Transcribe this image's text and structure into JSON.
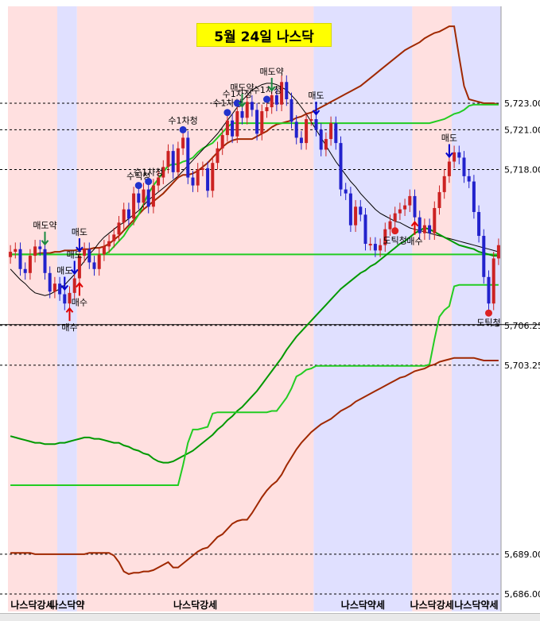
{
  "chart_data": {
    "type": "line",
    "title": "5월 24일 나스닥",
    "xlabel": "",
    "ylabel": "",
    "y_ticks": [
      5723.0,
      5721.0,
      5718.0,
      5706.25,
      5703.25,
      5689.0,
      5686.0
    ],
    "y_tick_labels": [
      "5,723.00",
      "5,721.00",
      "5,718.00",
      "5,706.25",
      "5,703.25",
      "5,689.00",
      "5,686.00"
    ],
    "ylim": [
      5685.0,
      5729.0
    ],
    "num_bars": 100,
    "candles": {
      "close": [
        5711.8,
        5712.0,
        5710.5,
        5710.2,
        5711.5,
        5712.2,
        5712.0,
        5710.2,
        5708.8,
        5709.4,
        5708.6,
        5707.9,
        5708.7,
        5709.8,
        5711.5,
        5712.0,
        5711.0,
        5710.5,
        5711.6,
        5712.2,
        5712.6,
        5713.1,
        5714.0,
        5715.0,
        5714.3,
        5716.2,
        5715.5,
        5716.5,
        5715.2,
        5716.8,
        5717.4,
        5718.2,
        5719.4,
        5717.8,
        5719.6,
        5720.4,
        5717.4,
        5716.8,
        5718.0,
        5718.1,
        5716.4,
        5718.5,
        5719.6,
        5720.6,
        5721.7,
        5720.5,
        5722.4,
        5721.9,
        5723.1,
        5722.5,
        5720.7,
        5722.4,
        5722.7,
        5723.6,
        5722.9,
        5724.6,
        5723.3,
        5721.6,
        5720.4,
        5720.0,
        5721.8,
        5721.8,
        5721.0,
        5719.5,
        5720.3,
        5721.5,
        5720.0,
        5716.5,
        5716.2,
        5713.8,
        5715.2,
        5714.6,
        5712.4,
        5712.4,
        5711.9,
        5712.3,
        5713.5,
        5714.1,
        5714.7,
        5715.0,
        5715.3,
        5716.0,
        5714.4,
        5713.2,
        5713.8,
        5713.2,
        5715.1,
        5716.3,
        5717.5,
        5718.6,
        5719.3,
        5718.9,
        5717.5,
        5717.1,
        5714.8,
        5713.0,
        5709.9,
        5707.9,
        5711.3,
        5712.3
      ],
      "open": [
        5711.4,
        5711.8,
        5712.0,
        5710.5,
        5710.2,
        5711.5,
        5712.2,
        5712.0,
        5710.2,
        5708.8,
        5709.4,
        5708.6,
        5707.9,
        5708.7,
        5709.8,
        5711.5,
        5712.0,
        5711.0,
        5710.5,
        5711.6,
        5712.2,
        5712.6,
        5713.1,
        5714.0,
        5715.0,
        5714.3,
        5716.2,
        5715.5,
        5716.5,
        5715.2,
        5716.8,
        5717.4,
        5718.2,
        5719.4,
        5717.8,
        5719.6,
        5720.4,
        5717.4,
        5716.8,
        5718.0,
        5718.1,
        5716.4,
        5718.5,
        5719.6,
        5720.6,
        5721.7,
        5720.5,
        5722.4,
        5721.9,
        5723.1,
        5722.5,
        5720.7,
        5722.4,
        5722.7,
        5723.6,
        5722.9,
        5724.6,
        5723.3,
        5721.6,
        5720.4,
        5720.0,
        5721.8,
        5721.8,
        5721.0,
        5719.5,
        5720.3,
        5721.5,
        5720.0,
        5716.5,
        5716.2,
        5713.8,
        5715.2,
        5714.6,
        5712.4,
        5712.4,
        5711.9,
        5712.3,
        5713.5,
        5714.1,
        5714.7,
        5715.0,
        5715.3,
        5716.0,
        5714.4,
        5713.2,
        5713.8,
        5713.2,
        5715.1,
        5716.3,
        5717.5,
        5718.6,
        5719.3,
        5718.9,
        5717.5,
        5717.1,
        5714.8,
        5713.0,
        5709.9,
        5707.9,
        5711.3
      ]
    },
    "series": [
      {
        "values": [
          5711.6,
          5711.6,
          5711.6,
          5711.6,
          5711.6,
          5711.6,
          5711.7,
          5711.7,
          5711.7,
          5711.8,
          5711.8,
          5711.9,
          5711.9,
          5711.9,
          5712.0,
          5712.0,
          5712.0,
          5712.1,
          5712.1,
          5712.2,
          5712.4,
          5712.7,
          5713.0,
          5713.4,
          5713.8,
          5714.2,
          5714.6,
          5715.0,
          5715.3,
          5715.6,
          5715.9,
          5716.2,
          5716.6,
          5717.0,
          5717.4,
          5717.6,
          5717.6,
          5717.7,
          5717.9,
          5718.2,
          5718.5,
          5718.9,
          5719.3,
          5719.7,
          5720.0,
          5720.2,
          5720.3,
          5720.3,
          5720.3,
          5720.3,
          5720.5,
          5720.7,
          5720.9,
          5721.2,
          5721.4,
          5721.5,
          5721.6,
          5721.7,
          5721.9,
          5722.0,
          5722.2,
          5722.3,
          5722.5,
          5722.7,
          5722.9,
          5723.1,
          5723.3,
          5723.5,
          5723.7,
          5723.9,
          5724.1,
          5724.3,
          5724.6,
          5724.9,
          5725.2,
          5725.5,
          5725.8,
          5726.1,
          5726.4,
          5726.7,
          5727.0,
          5727.2,
          5727.4,
          5727.6,
          5727.9,
          5728.1,
          5728.3,
          5728.4,
          5728.6,
          5728.8,
          5728.8,
          5726.5,
          5724.3,
          5723.3,
          5723.2,
          5723.1,
          5723.0,
          5723.0,
          5723.0,
          5722.9
        ]
      },
      {
        "values": [
          5711.6,
          5711.6,
          5711.6,
          5711.6,
          5711.6,
          5711.6,
          5711.6,
          5711.6,
          5711.6,
          5711.6,
          5711.6,
          5711.6,
          5711.6,
          5711.6,
          5711.6,
          5711.6,
          5711.6,
          5711.6,
          5711.6,
          5711.6,
          5711.8,
          5712.2,
          5712.6,
          5713.0,
          5713.6,
          5714.0,
          5714.6,
          5715.4,
          5716.2,
          5716.8,
          5717.3,
          5717.8,
          5718.3,
          5718.4,
          5718.4,
          5718.6,
          5718.7,
          5718.9,
          5719.3,
          5719.6,
          5719.8,
          5720.0,
          5720.4,
          5720.8,
          5721.2,
          5721.5,
          5721.5,
          5721.5,
          5721.5,
          5721.5,
          5721.5,
          5721.5,
          5721.5,
          5721.5,
          5721.5,
          5721.5,
          5721.5,
          5721.5,
          5721.5,
          5721.5,
          5721.5,
          5721.5,
          5721.5,
          5721.5,
          5721.5,
          5721.5,
          5721.5,
          5721.5,
          5721.5,
          5721.5,
          5721.5,
          5721.5,
          5721.5,
          5721.5,
          5721.5,
          5721.5,
          5721.5,
          5721.5,
          5721.5,
          5721.5,
          5721.5,
          5721.5,
          5721.5,
          5721.5,
          5721.5,
          5721.5,
          5721.6,
          5721.7,
          5721.8,
          5722.0,
          5722.2,
          5722.3,
          5722.5,
          5722.8,
          5722.9,
          5722.9,
          5722.9,
          5722.9,
          5722.9,
          5722.9
        ]
      },
      {
        "values": [
          5710.5,
          5710.1,
          5709.7,
          5709.4,
          5709.0,
          5708.7,
          5708.6,
          5708.5,
          5708.6,
          5708.8,
          5709.0,
          5709.3,
          5709.7,
          5710.1,
          5710.6,
          5711.1,
          5711.6,
          5712.0,
          5712.5,
          5712.9,
          5713.2,
          5713.5,
          5713.8,
          5714.0,
          5714.3,
          5714.6,
          5714.9,
          5715.3,
          5715.7,
          5716.0,
          5716.3,
          5716.6,
          5716.9,
          5717.2,
          5717.5,
          5717.9,
          5718.3,
          5718.7,
          5719.1,
          5719.5,
          5719.9,
          5720.3,
          5720.7,
          5721.2,
          5721.7,
          5722.2,
          5722.7,
          5723.2,
          5723.6,
          5724.0,
          5724.2,
          5724.4,
          5724.5,
          5724.5,
          5724.4,
          5724.2,
          5724.0,
          5723.6,
          5723.2,
          5722.7,
          5722.2,
          5721.6,
          5721.0,
          5720.4,
          5719.8,
          5719.2,
          5718.6,
          5718.1,
          5717.6,
          5717.1,
          5716.7,
          5716.2,
          5715.8,
          5715.4,
          5715.0,
          5714.7,
          5714.5,
          5714.3,
          5714.1,
          5714.0,
          5713.8,
          5713.6,
          5713.5,
          5713.4,
          5713.3,
          5713.2,
          5713.1,
          5713.0,
          5712.9,
          5712.8,
          5712.7,
          5712.6,
          5712.5,
          5712.4,
          5712.3,
          5712.2,
          5712.1,
          5712.0,
          5711.9,
          5711.8
        ]
      },
      {
        "values": [
          5711.6,
          5711.6,
          5711.6,
          5711.6,
          5711.6,
          5711.6,
          5711.6,
          5711.6,
          5711.6,
          5711.6,
          5711.6,
          5711.6,
          5711.6,
          5711.6,
          5711.6,
          5711.6,
          5711.6,
          5711.6,
          5711.6,
          5711.6,
          5711.6,
          5711.6,
          5711.6,
          5711.6,
          5711.6,
          5711.6,
          5711.6,
          5711.6,
          5711.6,
          5711.6,
          5711.6,
          5711.6,
          5711.6,
          5711.6,
          5711.6,
          5711.6,
          5711.6,
          5711.6,
          5711.6,
          5711.6,
          5711.6,
          5711.6,
          5711.6,
          5711.6,
          5711.6,
          5711.6,
          5711.6,
          5711.6,
          5711.6,
          5711.6,
          5711.6,
          5711.6,
          5711.6,
          5711.6,
          5711.6,
          5711.6,
          5711.6,
          5711.6,
          5711.6,
          5711.6,
          5711.6,
          5711.6,
          5711.6,
          5711.6,
          5711.6,
          5711.6,
          5711.6,
          5711.6,
          5711.6,
          5711.6,
          5711.6,
          5711.6,
          5711.6,
          5711.6,
          5711.6,
          5711.6,
          5711.6,
          5711.6,
          5711.6,
          5711.6,
          5711.6,
          5711.6,
          5711.6,
          5711.6,
          5711.6,
          5711.6,
          5711.6,
          5711.6,
          5711.6,
          5711.6,
          5711.6,
          5711.6,
          5711.6,
          5711.6,
          5711.6,
          5711.6,
          5711.6,
          5711.6,
          5711.6,
          5711.6
        ]
      },
      {
        "values": [
          5697.9,
          5697.8,
          5697.7,
          5697.6,
          5697.5,
          5697.4,
          5697.4,
          5697.3,
          5697.3,
          5697.3,
          5697.4,
          5697.4,
          5697.5,
          5697.6,
          5697.7,
          5697.8,
          5697.8,
          5697.7,
          5697.7,
          5697.6,
          5697.5,
          5697.4,
          5697.4,
          5697.2,
          5697.1,
          5696.9,
          5696.8,
          5696.6,
          5696.5,
          5696.2,
          5696.0,
          5695.9,
          5695.9,
          5696.0,
          5696.2,
          5696.4,
          5696.6,
          5696.8,
          5697.1,
          5697.4,
          5697.7,
          5698.0,
          5698.4,
          5698.7,
          5699.1,
          5699.4,
          5699.8,
          5700.1,
          5700.5,
          5700.9,
          5701.3,
          5701.8,
          5702.3,
          5702.8,
          5703.3,
          5703.8,
          5704.4,
          5704.9,
          5705.4,
          5705.8,
          5706.2,
          5706.6,
          5707.0,
          5707.4,
          5707.8,
          5708.2,
          5708.6,
          5709.0,
          5709.3,
          5709.6,
          5709.9,
          5710.2,
          5710.4,
          5710.7,
          5710.9,
          5711.2,
          5711.5,
          5711.8,
          5712.1,
          5712.4,
          5712.6,
          5712.9,
          5713.2,
          5713.4,
          5713.6,
          5713.5,
          5713.3,
          5713.1,
          5712.9,
          5712.7,
          5712.5,
          5712.3,
          5712.2,
          5712.1,
          5712.0,
          5711.8,
          5711.7,
          5711.6,
          5711.5,
          5711.5
        ]
      },
      {
        "values": [
          5694.2,
          5694.2,
          5694.2,
          5694.2,
          5694.2,
          5694.2,
          5694.2,
          5694.2,
          5694.2,
          5694.2,
          5694.2,
          5694.2,
          5694.2,
          5694.2,
          5694.2,
          5694.2,
          5694.2,
          5694.2,
          5694.2,
          5694.2,
          5694.2,
          5694.2,
          5694.2,
          5694.2,
          5694.2,
          5694.2,
          5694.2,
          5694.2,
          5694.2,
          5694.2,
          5694.2,
          5694.2,
          5694.2,
          5694.2,
          5694.2,
          5695.7,
          5697.4,
          5698.4,
          5698.4,
          5698.5,
          5698.6,
          5699.6,
          5699.7,
          5699.7,
          5699.7,
          5699.7,
          5699.7,
          5699.7,
          5699.7,
          5699.7,
          5699.7,
          5699.7,
          5699.7,
          5699.8,
          5699.8,
          5700.3,
          5700.8,
          5701.5,
          5702.4,
          5702.6,
          5702.9,
          5703.0,
          5703.2,
          5703.2,
          5703.2,
          5703.2,
          5703.2,
          5703.2,
          5703.2,
          5703.2,
          5703.2,
          5703.2,
          5703.2,
          5703.2,
          5703.2,
          5703.2,
          5703.2,
          5703.2,
          5703.2,
          5703.2,
          5703.2,
          5703.2,
          5703.2,
          5703.2,
          5703.2,
          5703.3,
          5705.2,
          5706.9,
          5707.4,
          5707.7,
          5709.2,
          5709.3,
          5709.3,
          5709.3,
          5709.3,
          5709.3,
          5709.3,
          5709.3,
          5709.3,
          5709.3
        ]
      },
      {
        "values": [
          5689.1,
          5689.1,
          5689.1,
          5689.1,
          5689.1,
          5689.0,
          5689.0,
          5689.0,
          5689.0,
          5689.0,
          5689.0,
          5689.0,
          5689.0,
          5689.0,
          5689.0,
          5689.0,
          5689.1,
          5689.1,
          5689.1,
          5689.1,
          5689.1,
          5688.9,
          5688.4,
          5687.7,
          5687.5,
          5687.6,
          5687.6,
          5687.7,
          5687.7,
          5687.8,
          5688.0,
          5688.2,
          5688.4,
          5688.0,
          5688.0,
          5688.3,
          5688.6,
          5688.9,
          5689.2,
          5689.4,
          5689.5,
          5689.9,
          5690.3,
          5690.5,
          5690.9,
          5691.3,
          5691.5,
          5691.6,
          5691.6,
          5692.1,
          5692.7,
          5693.3,
          5693.8,
          5694.2,
          5694.5,
          5695.0,
          5695.7,
          5696.3,
          5696.9,
          5697.4,
          5697.8,
          5698.2,
          5698.5,
          5698.8,
          5699.0,
          5699.2,
          5699.5,
          5699.8,
          5700.0,
          5700.2,
          5700.5,
          5700.7,
          5700.9,
          5701.1,
          5701.3,
          5701.5,
          5701.7,
          5701.9,
          5702.1,
          5702.3,
          5702.4,
          5702.6,
          5702.8,
          5702.9,
          5703.0,
          5703.2,
          5703.3,
          5703.5,
          5703.6,
          5703.7,
          5703.8,
          5703.8,
          5703.8,
          5703.8,
          5703.8,
          5703.7,
          5703.6,
          5703.6,
          5703.6,
          5703.6
        ]
      }
    ],
    "regimes": [
      {
        "label": "나스닥강세",
        "from": 0,
        "to": 10
      },
      {
        "label": "나스닥약",
        "from": 10,
        "to": 14
      },
      {
        "label": "나스닥강세",
        "from": 14,
        "to": 62
      },
      {
        "label": "나스닥약세",
        "from": 62,
        "to": 82
      },
      {
        "label": "나스닥강세",
        "from": 82,
        "to": 90
      },
      {
        "label": "나스닥약세",
        "from": 90,
        "to": 100
      }
    ],
    "signals": [
      {
        "bar": 7,
        "label": "매도약",
        "kind": "sell-weak"
      },
      {
        "bar": 11,
        "label": "매도",
        "kind": "sell"
      },
      {
        "bar": 12,
        "label": "매수",
        "kind": "buy"
      },
      {
        "bar": 13,
        "label": "매도",
        "kind": "sell"
      },
      {
        "bar": 14,
        "label": "매수",
        "kind": "buy"
      },
      {
        "bar": 14,
        "label": "매도",
        "kind": "sell"
      },
      {
        "bar": 26,
        "label": "수틱청",
        "kind": "cover"
      },
      {
        "bar": 28,
        "label": "수1차청",
        "kind": "cover"
      },
      {
        "bar": 35,
        "label": "수1차청",
        "kind": "cover"
      },
      {
        "bar": 44,
        "label": "수1차청",
        "kind": "cover"
      },
      {
        "bar": 46,
        "label": "수1차청",
        "kind": "cover"
      },
      {
        "bar": 47,
        "label": "매도약",
        "kind": "sell-weak"
      },
      {
        "bar": 52,
        "label": "수1차청",
        "kind": "cover"
      },
      {
        "bar": 53,
        "label": "매도약",
        "kind": "sell-weak"
      },
      {
        "bar": 62,
        "label": "매도",
        "kind": "sell"
      },
      {
        "bar": 78,
        "label": "도틱청",
        "kind": "cover-short"
      },
      {
        "bar": 82,
        "label": "매수",
        "kind": "buy"
      },
      {
        "bar": 89,
        "label": "매도",
        "kind": "sell"
      },
      {
        "bar": 97,
        "label": "도틱청",
        "kind": "cover-short"
      }
    ]
  },
  "colors": {
    "bull_candle": "#cc2222",
    "bear_candle": "#2222cc",
    "strong_bg": "#ffe0e0",
    "weak_bg": "#e0e0ff",
    "envelope": "#a02800",
    "stop_line": "#22cc22",
    "trend_line": "#006600",
    "ma_line": "#000000"
  }
}
